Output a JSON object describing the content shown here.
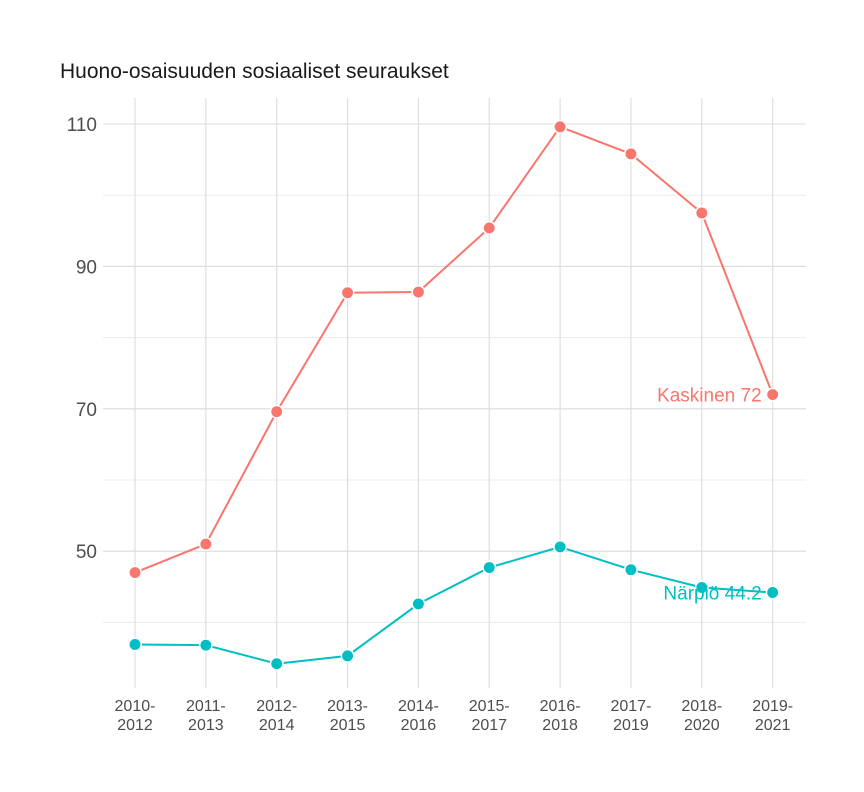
{
  "chart_data": {
    "type": "line",
    "title": "Huono-osaisuuden sosiaaliset seuraukset",
    "xlabel": "",
    "ylabel": "",
    "categories": [
      "2010-2012",
      "2011-2013",
      "2012-2014",
      "2013-2015",
      "2014-2016",
      "2015-2017",
      "2016-2018",
      "2017-2019",
      "2018-2020",
      "2019-2021"
    ],
    "category_lines": [
      [
        "2010-",
        "2012"
      ],
      [
        "2011-",
        "2013"
      ],
      [
        "2012-",
        "2014"
      ],
      [
        "2013-",
        "2015"
      ],
      [
        "2014-",
        "2016"
      ],
      [
        "2015-",
        "2017"
      ],
      [
        "2016-",
        "2018"
      ],
      [
        "2017-",
        "2019"
      ],
      [
        "2018-",
        "2020"
      ],
      [
        "2019-",
        "2021"
      ]
    ],
    "ylim": [
      34,
      113
    ],
    "yticks": [
      50,
      70,
      90,
      110
    ],
    "ygrid_minor": [
      40,
      60,
      80,
      100
    ],
    "grid": true,
    "legend": "none",
    "series": [
      {
        "values": [
          47.0,
          51.0,
          69.6,
          86.3,
          86.4,
          95.4,
          109.6,
          105.8,
          97.5,
          72.0
        ],
        "color": "#F8766D",
        "end_label": "Kaskinen 72"
      },
      {
        "values": [
          36.9,
          36.8,
          34.2,
          35.3,
          42.6,
          47.7,
          50.6,
          47.4,
          44.9,
          44.2
        ],
        "color": "#00BFC4",
        "end_label": "Närpiö 44.2"
      }
    ]
  }
}
